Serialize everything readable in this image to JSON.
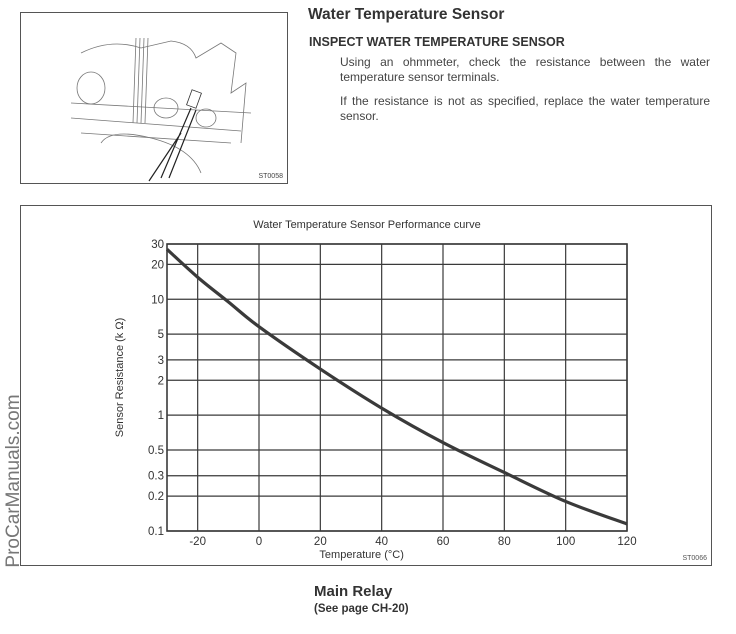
{
  "section": {
    "title": "Water Temperature Sensor",
    "subheading": "INSPECT WATER TEMPERATURE SENSOR",
    "paragraphs": [
      "Using an ohmmeter, check the resistance between the water temperature sensor terminals.",
      "If the resistance is not as specified, replace the water temperature sensor."
    ],
    "figure_code": "ST0058"
  },
  "chart_data": {
    "type": "line",
    "title": "Water Temperature Sensor Performance curve",
    "xlabel": "Temperature (°C)",
    "ylabel": "Sensor Resistance (k Ω)",
    "xlim": [
      -30,
      120
    ],
    "ylim": [
      0.1,
      30
    ],
    "yscale": "log",
    "grid": true,
    "x_ticks": [
      -20,
      0,
      20,
      40,
      60,
      80,
      100,
      120
    ],
    "y_ticks": [
      30,
      20,
      10,
      5,
      3,
      2,
      1,
      0.5,
      0.3,
      0.2,
      0.1
    ],
    "y_tick_labels": [
      "30",
      "20",
      "10",
      "5",
      "3",
      "2",
      "1",
      "0.5",
      "0.3",
      "0.2",
      "0.1"
    ],
    "series": [
      {
        "name": "Sensor resistance",
        "x": [
          -30,
          -20,
          -10,
          0,
          20,
          40,
          60,
          80,
          100,
          120
        ],
        "y": [
          27,
          15.5,
          9.5,
          5.8,
          2.5,
          1.15,
          0.58,
          0.32,
          0.18,
          0.115
        ]
      }
    ],
    "figure_code": "ST0066"
  },
  "watermark": "ProCarManuals.com",
  "next_section": {
    "title": "Main Relay",
    "reference": "(See page CH-20)"
  },
  "colors": {
    "ink": "#333333",
    "grid": "#3a3a3a"
  }
}
